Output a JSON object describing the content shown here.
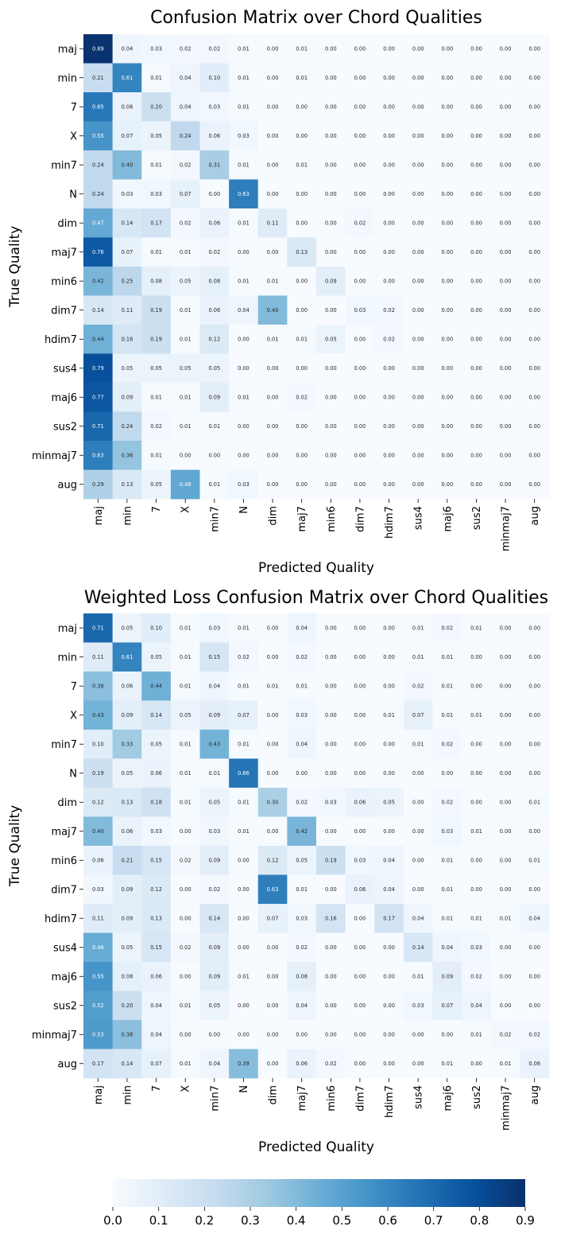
{
  "chart_data": [
    {
      "type": "heatmap",
      "title": "Confusion Matrix over Chord Qualities",
      "xlabel": "Predicted Quality",
      "ylabel": "True Quality",
      "categories": [
        "maj",
        "min",
        "7",
        "X",
        "min7",
        "N",
        "dim",
        "maj7",
        "min6",
        "dim7",
        "hdim7",
        "sus4",
        "maj6",
        "sus2",
        "minmaj7",
        "aug"
      ],
      "values": [
        [
          "0.89",
          "0.04",
          "0.03",
          "0.02",
          "0.02",
          "0.01",
          "0.00",
          "0.01",
          "0.00",
          "0.00",
          "0.00",
          "0.00",
          "0.00",
          "0.00",
          "0.00",
          "0.00"
        ],
        [
          "0.21",
          "0.61",
          "0.01",
          "0.04",
          "0.10",
          "0.01",
          "0.00",
          "0.01",
          "0.00",
          "0.00",
          "0.00",
          "0.00",
          "0.00",
          "0.00",
          "0.00",
          "0.00"
        ],
        [
          "0.65",
          "0.06",
          "0.20",
          "0.04",
          "0.03",
          "0.01",
          "0.00",
          "0.00",
          "0.00",
          "0.00",
          "0.00",
          "0.00",
          "0.00",
          "0.00",
          "0.00",
          "0.00"
        ],
        [
          "0.55",
          "0.07",
          "0.05",
          "0.24",
          "0.06",
          "0.03",
          "0.00",
          "0.00",
          "0.00",
          "0.00",
          "0.00",
          "0.00",
          "0.00",
          "0.00",
          "0.00",
          "0.00"
        ],
        [
          "0.24",
          "0.40",
          "0.01",
          "0.02",
          "0.31",
          "0.01",
          "0.00",
          "0.01",
          "0.00",
          "0.00",
          "0.00",
          "0.00",
          "0.00",
          "0.00",
          "0.00",
          "0.00"
        ],
        [
          "0.24",
          "0.03",
          "0.03",
          "0.07",
          "0.00",
          "0.63",
          "0.00",
          "0.00",
          "0.00",
          "0.00",
          "0.00",
          "0.00",
          "0.00",
          "0.00",
          "0.00",
          "0.00"
        ],
        [
          "0.47",
          "0.14",
          "0.17",
          "0.02",
          "0.06",
          "0.01",
          "0.11",
          "0.00",
          "0.00",
          "0.02",
          "0.00",
          "0.00",
          "0.00",
          "0.00",
          "0.00",
          "0.00"
        ],
        [
          "0.76",
          "0.07",
          "0.01",
          "0.01",
          "0.02",
          "0.00",
          "0.00",
          "0.13",
          "0.00",
          "0.00",
          "0.00",
          "0.00",
          "0.00",
          "0.00",
          "0.00",
          "0.00"
        ],
        [
          "0.42",
          "0.25",
          "0.08",
          "0.05",
          "0.08",
          "0.01",
          "0.01",
          "0.00",
          "0.09",
          "0.00",
          "0.00",
          "0.00",
          "0.00",
          "0.00",
          "0.00",
          "0.00"
        ],
        [
          "0.14",
          "0.11",
          "0.19",
          "0.01",
          "0.06",
          "0.04",
          "0.40",
          "0.00",
          "0.00",
          "0.03",
          "0.02",
          "0.00",
          "0.00",
          "0.00",
          "0.00",
          "0.00"
        ],
        [
          "0.44",
          "0.16",
          "0.19",
          "0.01",
          "0.12",
          "0.00",
          "0.01",
          "0.01",
          "0.05",
          "0.00",
          "0.02",
          "0.00",
          "0.00",
          "0.00",
          "0.00",
          "0.00"
        ],
        [
          "0.79",
          "0.05",
          "0.05",
          "0.05",
          "0.05",
          "0.00",
          "0.00",
          "0.00",
          "0.00",
          "0.00",
          "0.00",
          "0.00",
          "0.00",
          "0.00",
          "0.00",
          "0.00"
        ],
        [
          "0.77",
          "0.09",
          "0.01",
          "0.01",
          "0.09",
          "0.01",
          "0.00",
          "0.02",
          "0.00",
          "0.00",
          "0.00",
          "0.00",
          "0.00",
          "0.00",
          "0.00",
          "0.00"
        ],
        [
          "0.71",
          "0.24",
          "0.02",
          "0.01",
          "0.01",
          "0.00",
          "0.00",
          "0.00",
          "0.00",
          "0.00",
          "0.00",
          "0.00",
          "0.00",
          "0.00",
          "0.00",
          "0.00"
        ],
        [
          "0.63",
          "0.36",
          "0.01",
          "0.00",
          "0.00",
          "0.00",
          "0.00",
          "0.00",
          "0.00",
          "0.00",
          "0.00",
          "0.00",
          "0.00",
          "0.00",
          "0.00",
          "0.00"
        ],
        [
          "0.29",
          "0.13",
          "0.05",
          "0.48",
          "0.01",
          "0.03",
          "0.00",
          "0.00",
          "0.00",
          "0.00",
          "0.00",
          "0.00",
          "0.00",
          "0.00",
          "0.00",
          "0.00"
        ]
      ]
    },
    {
      "type": "heatmap",
      "title": "Weighted Loss Confusion Matrix over Chord Qualities",
      "xlabel": "Predicted Quality",
      "ylabel": "True Quality",
      "categories": [
        "maj",
        "min",
        "7",
        "X",
        "min7",
        "N",
        "dim",
        "maj7",
        "min6",
        "dim7",
        "hdim7",
        "sus4",
        "maj6",
        "sus2",
        "minmaj7",
        "aug"
      ],
      "values": [
        [
          "0.71",
          "0.05",
          "0.10",
          "0.01",
          "0.03",
          "0.01",
          "0.00",
          "0.04",
          "0.00",
          "0.00",
          "0.00",
          "0.01",
          "0.02",
          "0.01",
          "0.00",
          "0.00"
        ],
        [
          "0.11",
          "0.61",
          "0.05",
          "0.01",
          "0.15",
          "0.02",
          "0.00",
          "0.02",
          "0.00",
          "0.00",
          "0.00",
          "0.01",
          "0.01",
          "0.00",
          "0.00",
          "0.00"
        ],
        [
          "0.38",
          "0.06",
          "0.44",
          "0.01",
          "0.04",
          "0.01",
          "0.01",
          "0.01",
          "0.00",
          "0.00",
          "0.00",
          "0.02",
          "0.01",
          "0.00",
          "0.00",
          "0.00"
        ],
        [
          "0.43",
          "0.09",
          "0.14",
          "0.05",
          "0.09",
          "0.07",
          "0.00",
          "0.03",
          "0.00",
          "0.00",
          "0.01",
          "0.07",
          "0.01",
          "0.01",
          "0.00",
          "0.00"
        ],
        [
          "0.10",
          "0.33",
          "0.05",
          "0.01",
          "0.43",
          "0.01",
          "0.00",
          "0.04",
          "0.00",
          "0.00",
          "0.00",
          "0.01",
          "0.02",
          "0.00",
          "0.00",
          "0.00"
        ],
        [
          "0.19",
          "0.05",
          "0.06",
          "0.01",
          "0.01",
          "0.66",
          "0.00",
          "0.00",
          "0.00",
          "0.00",
          "0.00",
          "0.00",
          "0.00",
          "0.00",
          "0.00",
          "0.00"
        ],
        [
          "0.12",
          "0.13",
          "0.18",
          "0.01",
          "0.05",
          "0.01",
          "0.30",
          "0.02",
          "0.03",
          "0.06",
          "0.05",
          "0.00",
          "0.02",
          "0.00",
          "0.00",
          "0.01"
        ],
        [
          "0.40",
          "0.06",
          "0.03",
          "0.00",
          "0.03",
          "0.01",
          "0.00",
          "0.42",
          "0.00",
          "0.00",
          "0.00",
          "0.00",
          "0.03",
          "0.01",
          "0.00",
          "0.00"
        ],
        [
          "0.06",
          "0.21",
          "0.15",
          "0.02",
          "0.09",
          "0.00",
          "0.12",
          "0.05",
          "0.19",
          "0.03",
          "0.04",
          "0.00",
          "0.01",
          "0.00",
          "0.00",
          "0.01"
        ],
        [
          "0.03",
          "0.09",
          "0.12",
          "0.00",
          "0.02",
          "0.00",
          "0.63",
          "0.01",
          "0.00",
          "0.06",
          "0.04",
          "0.00",
          "0.01",
          "0.00",
          "0.00",
          "0.00"
        ],
        [
          "0.11",
          "0.09",
          "0.13",
          "0.00",
          "0.14",
          "0.00",
          "0.07",
          "0.03",
          "0.16",
          "0.00",
          "0.17",
          "0.04",
          "0.01",
          "0.01",
          "0.01",
          "0.04"
        ],
        [
          "0.46",
          "0.05",
          "0.15",
          "0.02",
          "0.09",
          "0.00",
          "0.00",
          "0.02",
          "0.00",
          "0.00",
          "0.00",
          "0.14",
          "0.04",
          "0.03",
          "0.00",
          "0.00"
        ],
        [
          "0.55",
          "0.08",
          "0.06",
          "0.00",
          "0.09",
          "0.01",
          "0.00",
          "0.08",
          "0.00",
          "0.00",
          "0.00",
          "0.01",
          "0.09",
          "0.02",
          "0.00",
          "0.00"
        ],
        [
          "0.52",
          "0.20",
          "0.04",
          "0.01",
          "0.05",
          "0.00",
          "0.00",
          "0.04",
          "0.00",
          "0.00",
          "0.00",
          "0.03",
          "0.07",
          "0.04",
          "0.00",
          "0.00"
        ],
        [
          "0.53",
          "0.38",
          "0.04",
          "0.00",
          "0.00",
          "0.00",
          "0.00",
          "0.00",
          "0.00",
          "0.00",
          "0.00",
          "0.00",
          "0.00",
          "0.01",
          "0.02",
          "0.02"
        ],
        [
          "0.17",
          "0.14",
          "0.07",
          "0.01",
          "0.04",
          "0.39",
          "0.00",
          "0.06",
          "0.02",
          "0.00",
          "0.00",
          "0.00",
          "0.01",
          "0.00",
          "0.01",
          "0.06"
        ]
      ]
    }
  ],
  "colorbar": {
    "colormap": "Blues",
    "range": [
      0,
      0.9
    ],
    "ticks": [
      "0.0",
      "0.1",
      "0.2",
      "0.3",
      "0.4",
      "0.5",
      "0.6",
      "0.7",
      "0.8",
      "0.9"
    ]
  }
}
